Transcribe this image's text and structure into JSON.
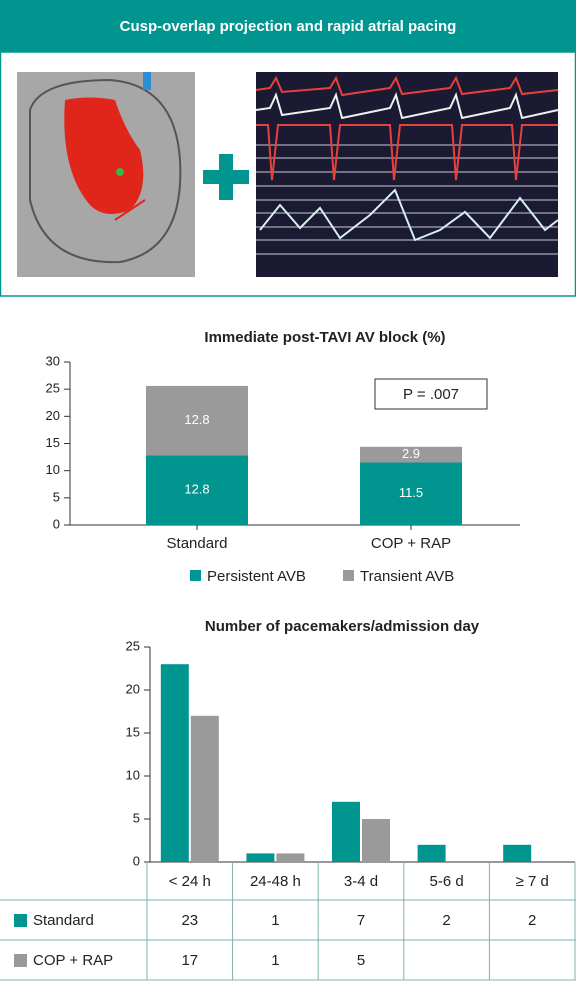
{
  "header": {
    "title": "Cusp-overlap projection and rapid atrial pacing"
  },
  "chart_data": [
    {
      "type": "bar",
      "stacked": true,
      "title": "Immediate post-TAVI AV block (%)",
      "categories": [
        "Standard",
        "COP + RAP"
      ],
      "series": [
        {
          "name": "Persistent AVB",
          "color": "#00968f",
          "values": [
            12.8,
            11.5
          ]
        },
        {
          "name": "Transient AVB",
          "color": "#9a9a9a",
          "values": [
            12.8,
            2.9
          ]
        }
      ],
      "ylim": [
        0,
        30
      ],
      "yticks": [
        0,
        5,
        10,
        15,
        20,
        25,
        30
      ],
      "annotation": "P = .007",
      "legend": "bottom",
      "data_labels": true
    },
    {
      "type": "bar",
      "stacked": false,
      "title": "Number of pacemakers/admission day",
      "categories": [
        "< 24 h",
        "24-48 h",
        "3-4 d",
        "5-6 d",
        "≥ 7 d"
      ],
      "series": [
        {
          "name": "Standard",
          "color": "#00968f",
          "values": [
            23,
            1,
            7,
            2,
            2
          ]
        },
        {
          "name": "COP + RAP",
          "color": "#9a9a9a",
          "values": [
            17,
            1,
            5,
            null,
            null
          ]
        }
      ],
      "ylim": [
        0,
        25
      ],
      "yticks": [
        0,
        5,
        10,
        15,
        20,
        25
      ],
      "legend": "table"
    }
  ]
}
